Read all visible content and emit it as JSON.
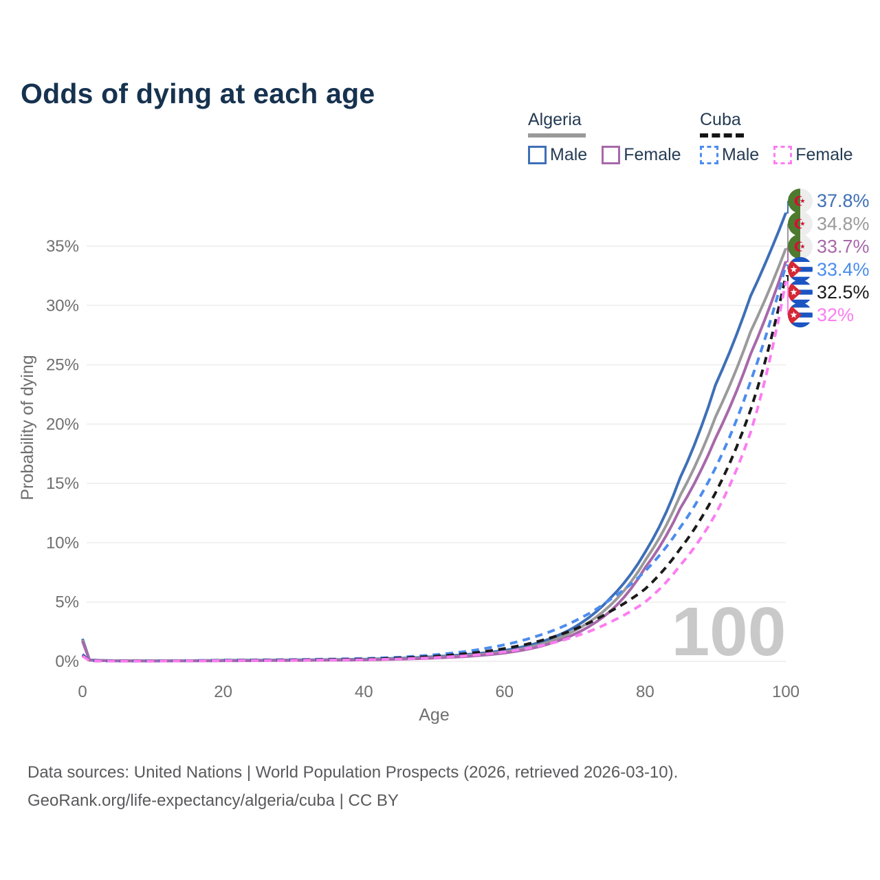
{
  "title": "Odds of dying at each age",
  "legend": {
    "groups": [
      {
        "label": "Algeria",
        "underline_style": "solid",
        "underline_color": "#9a9a9a",
        "items": [
          {
            "label": "Male",
            "color": "#3e6fb7",
            "dashed": false
          },
          {
            "label": "Female",
            "color": "#a768aa",
            "dashed": false
          }
        ]
      },
      {
        "label": "Cuba",
        "underline_style": "dashed",
        "underline_color": "#151515",
        "items": [
          {
            "label": "Male",
            "color": "#4b8cee",
            "dashed": true
          },
          {
            "label": "Female",
            "color": "#fb7df1",
            "dashed": true
          }
        ]
      }
    ]
  },
  "chart_data": {
    "type": "line",
    "title": "Odds of dying at each age",
    "xlabel": "Age",
    "ylabel": "Probability of dying",
    "xlim": [
      0,
      100
    ],
    "ylim": [
      0,
      39
    ],
    "x_ticks": [
      0,
      20,
      40,
      60,
      80,
      100
    ],
    "y_ticks": [
      {
        "value": 0,
        "label": "0%"
      },
      {
        "value": 5,
        "label": "5%"
      },
      {
        "value": 10,
        "label": "10%"
      },
      {
        "value": 15,
        "label": "15%"
      },
      {
        "value": 20,
        "label": "20%"
      },
      {
        "value": 25,
        "label": "25%"
      },
      {
        "value": 30,
        "label": "30%"
      },
      {
        "value": 35,
        "label": "35%"
      }
    ],
    "grid": true,
    "legend_position": "top-right",
    "watermark": "100",
    "series": [
      {
        "name": "Algeria Male",
        "id": "algeria-male",
        "flag": "algeria",
        "color": "#3e6fb7",
        "dashed": false,
        "end_label": "37.8%",
        "end_value": 37.8,
        "points": [
          [
            0,
            1.9
          ],
          [
            1,
            0.12
          ],
          [
            5,
            0.05
          ],
          [
            10,
            0.05
          ],
          [
            15,
            0.06
          ],
          [
            20,
            0.09
          ],
          [
            30,
            0.12
          ],
          [
            40,
            0.18
          ],
          [
            45,
            0.26
          ],
          [
            50,
            0.4
          ],
          [
            55,
            0.6
          ],
          [
            60,
            0.92
          ],
          [
            65,
            1.6
          ],
          [
            70,
            2.9
          ],
          [
            75,
            5.3
          ],
          [
            80,
            9.2
          ],
          [
            85,
            15.5
          ],
          [
            90,
            23.3
          ],
          [
            95,
            30.8
          ],
          [
            100,
            37.8
          ]
        ]
      },
      {
        "name": "Algeria Both sexes",
        "id": "algeria-total",
        "flag": "algeria",
        "color": "#9a9a9a",
        "dashed": false,
        "end_label": "34.8%",
        "end_value": 34.8,
        "points": [
          [
            0,
            1.8
          ],
          [
            1,
            0.11
          ],
          [
            5,
            0.04
          ],
          [
            10,
            0.04
          ],
          [
            15,
            0.05
          ],
          [
            20,
            0.07
          ],
          [
            30,
            0.1
          ],
          [
            40,
            0.15
          ],
          [
            45,
            0.22
          ],
          [
            50,
            0.33
          ],
          [
            55,
            0.5
          ],
          [
            60,
            0.8
          ],
          [
            65,
            1.4
          ],
          [
            70,
            2.6
          ],
          [
            75,
            4.7
          ],
          [
            80,
            8.5
          ],
          [
            85,
            14.0
          ],
          [
            90,
            20.6
          ],
          [
            95,
            27.8
          ],
          [
            100,
            34.8
          ]
        ]
      },
      {
        "name": "Algeria Female",
        "id": "algeria-female",
        "flag": "algeria",
        "color": "#a768aa",
        "dashed": false,
        "end_label": "33.7%",
        "end_value": 33.7,
        "points": [
          [
            0,
            1.7
          ],
          [
            1,
            0.1
          ],
          [
            5,
            0.04
          ],
          [
            10,
            0.03
          ],
          [
            15,
            0.04
          ],
          [
            20,
            0.05
          ],
          [
            30,
            0.08
          ],
          [
            40,
            0.12
          ],
          [
            45,
            0.18
          ],
          [
            50,
            0.28
          ],
          [
            55,
            0.43
          ],
          [
            60,
            0.7
          ],
          [
            65,
            1.25
          ],
          [
            70,
            2.3
          ],
          [
            75,
            4.2
          ],
          [
            80,
            7.9
          ],
          [
            85,
            12.9
          ],
          [
            90,
            18.8
          ],
          [
            95,
            25.9
          ],
          [
            100,
            33.7
          ]
        ]
      },
      {
        "name": "Cuba Male",
        "id": "cuba-male",
        "flag": "cuba",
        "color": "#4b8cee",
        "dashed": true,
        "end_label": "33.4%",
        "end_value": 33.4,
        "points": [
          [
            0,
            0.6
          ],
          [
            1,
            0.06
          ],
          [
            5,
            0.03
          ],
          [
            10,
            0.03
          ],
          [
            15,
            0.06
          ],
          [
            20,
            0.1
          ],
          [
            30,
            0.15
          ],
          [
            40,
            0.24
          ],
          [
            45,
            0.35
          ],
          [
            50,
            0.55
          ],
          [
            55,
            0.88
          ],
          [
            60,
            1.4
          ],
          [
            65,
            2.2
          ],
          [
            70,
            3.4
          ],
          [
            75,
            5.2
          ],
          [
            80,
            7.6
          ],
          [
            85,
            11.3
          ],
          [
            90,
            16.3
          ],
          [
            95,
            23.6
          ],
          [
            100,
            33.4
          ]
        ]
      },
      {
        "name": "Cuba Both sexes",
        "id": "cuba-total",
        "flag": "cuba",
        "color": "#1a1a1a",
        "dashed": true,
        "end_label": "32.5%",
        "end_value": 32.5,
        "points": [
          [
            0,
            0.5
          ],
          [
            1,
            0.05
          ],
          [
            5,
            0.03
          ],
          [
            10,
            0.03
          ],
          [
            15,
            0.05
          ],
          [
            20,
            0.08
          ],
          [
            30,
            0.12
          ],
          [
            40,
            0.19
          ],
          [
            45,
            0.28
          ],
          [
            50,
            0.43
          ],
          [
            55,
            0.68
          ],
          [
            60,
            1.08
          ],
          [
            65,
            1.72
          ],
          [
            70,
            2.72
          ],
          [
            75,
            4.2
          ],
          [
            80,
            6.1
          ],
          [
            85,
            9.5
          ],
          [
            90,
            14.2
          ],
          [
            95,
            21.2
          ],
          [
            100,
            32.5
          ]
        ]
      },
      {
        "name": "Cuba Female",
        "id": "cuba-female",
        "flag": "cuba",
        "color": "#fb7df1",
        "dashed": true,
        "end_label": "32%",
        "end_value": 32,
        "points": [
          [
            0,
            0.45
          ],
          [
            1,
            0.05
          ],
          [
            5,
            0.02
          ],
          [
            10,
            0.02
          ],
          [
            15,
            0.04
          ],
          [
            20,
            0.06
          ],
          [
            30,
            0.09
          ],
          [
            40,
            0.14
          ],
          [
            45,
            0.2
          ],
          [
            50,
            0.31
          ],
          [
            55,
            0.5
          ],
          [
            60,
            0.8
          ],
          [
            65,
            1.3
          ],
          [
            70,
            2.1
          ],
          [
            75,
            3.3
          ],
          [
            80,
            5.0
          ],
          [
            85,
            8.1
          ],
          [
            90,
            12.4
          ],
          [
            95,
            19.3
          ],
          [
            100,
            32.0
          ]
        ]
      }
    ],
    "flag_colors": {
      "algeria": {
        "green": "#4e7a2f",
        "white": "#ededed",
        "red": "#d21034"
      },
      "cuba": {
        "blue": "#1b55c2",
        "white": "#ffffff",
        "red": "#d62834"
      }
    },
    "axis_text_color": "#6f6f6f",
    "grid_color": "#ececec",
    "watermark_color": "#c9c9c9"
  },
  "footer": {
    "line1": "Data sources: United Nations | World Population Prospects (2026, retrieved 2026-03-10).",
    "line2": "GeoRank.org/life-expectancy/algeria/cuba | CC BY"
  }
}
